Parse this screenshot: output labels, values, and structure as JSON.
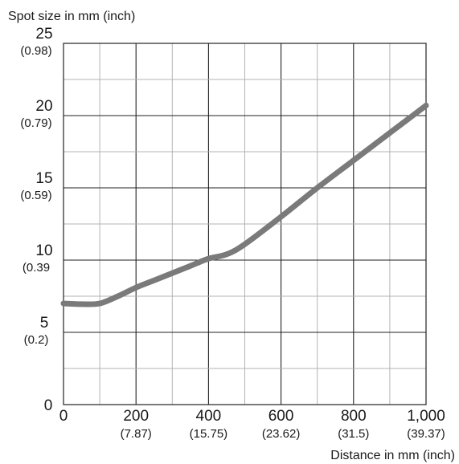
{
  "chart_data": {
    "type": "line",
    "title": "",
    "ylabel": "Spot size in mm (inch)",
    "xlabel": "Distance in mm (inch)",
    "xlim": [
      0,
      1000
    ],
    "ylim": [
      0,
      25
    ],
    "grid": true,
    "x_ticks": [
      {
        "value": 0,
        "label": "0",
        "sublabel": ""
      },
      {
        "value": 200,
        "label": "200",
        "sublabel": "(7.87)"
      },
      {
        "value": 400,
        "label": "400",
        "sublabel": "(15.75)"
      },
      {
        "value": 600,
        "label": "600",
        "sublabel": "(23.62)"
      },
      {
        "value": 800,
        "label": "800",
        "sublabel": "(31.5)"
      },
      {
        "value": 1000,
        "label": "1,000",
        "sublabel": "(39.37)"
      }
    ],
    "y_ticks": [
      {
        "value": 0,
        "label": "0",
        "sublabel": ""
      },
      {
        "value": 5,
        "label": "5",
        "sublabel": "(0.2)"
      },
      {
        "value": 10,
        "label": "10",
        "sublabel": "(0.39"
      },
      {
        "value": 15,
        "label": "15",
        "sublabel": "(0.59)"
      },
      {
        "value": 20,
        "label": "20",
        "sublabel": "(0.79)"
      },
      {
        "value": 25,
        "label": "25",
        "sublabel": "(0.98)"
      }
    ],
    "series": [
      {
        "color": "#7a7a7a",
        "x": [
          0,
          50,
          100,
          150,
          200,
          250,
          300,
          350,
          400,
          450,
          500,
          600,
          700,
          800,
          900,
          1000
        ],
        "y": [
          7.0,
          6.95,
          7.0,
          7.5,
          8.1,
          8.6,
          9.1,
          9.6,
          10.1,
          10.4,
          11.1,
          13.0,
          15.0,
          16.9,
          18.8,
          20.7
        ]
      }
    ]
  }
}
